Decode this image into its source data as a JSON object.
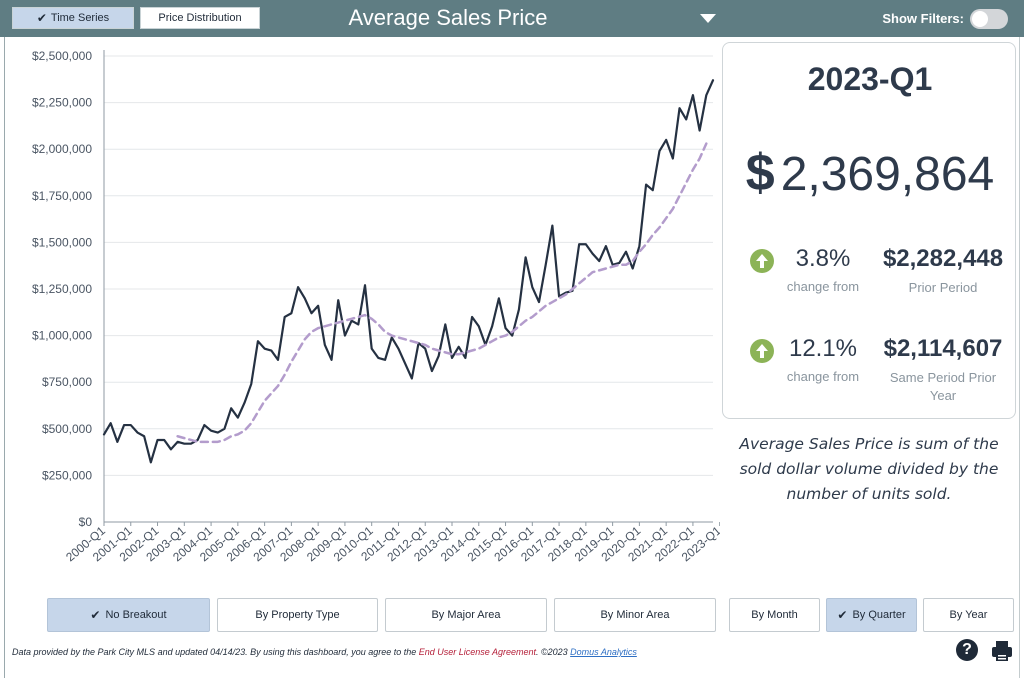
{
  "header": {
    "tabs": [
      {
        "label": "Time Series",
        "active": true
      },
      {
        "label": "Price Distribution",
        "active": false
      }
    ],
    "title": "Average Sales Price",
    "show_filters_label": "Show Filters:",
    "show_filters_on": false,
    "accent_color": "#5f7d83"
  },
  "summary": {
    "period": "2023-Q1",
    "currency_symbol": "$",
    "value": "2,369,864",
    "comparisons": [
      {
        "pct": "3.8%",
        "pct_label": "change from",
        "amount": "$2,282,448",
        "amount_label": "Prior Period",
        "direction_icon": "arrow-up-circle-icon"
      },
      {
        "pct": "12.1%",
        "pct_label": "change from",
        "amount": "$2,114,607",
        "amount_label": "Same Period Prior Year",
        "direction_icon": "arrow-up-circle-icon"
      }
    ],
    "positive_color": "#8cb357"
  },
  "description": "Average Sales Price is sum of the sold dollar volume divided by the number of units sold.",
  "breakout_buttons": [
    {
      "label": "No Breakout",
      "active": true
    },
    {
      "label": "By Property Type",
      "active": false
    },
    {
      "label": "By Major Area",
      "active": false
    },
    {
      "label": "By Minor Area",
      "active": false
    }
  ],
  "period_buttons": [
    {
      "label": "By Month",
      "active": false
    },
    {
      "label": "By Quarter",
      "active": true
    },
    {
      "label": "By Year",
      "active": false
    }
  ],
  "footer": {
    "text_before": "Data provided by the Park City MLS and updated 04/14/23.  By using this dashboard, you agree to the ",
    "eula": "End User License Agreement",
    "text_after": ".  ©2023 ",
    "brand": "Domus Analytics"
  },
  "chart_data": {
    "type": "line",
    "title": "",
    "xlabel": "",
    "ylabel": "",
    "ylim": [
      0,
      2500000
    ],
    "y_ticks": [
      0,
      250000,
      500000,
      750000,
      1000000,
      1250000,
      1500000,
      1750000,
      2000000,
      2250000,
      2500000
    ],
    "y_tick_labels": [
      "$0",
      "$250,000",
      "$500,000",
      "$750,000",
      "$1,000,000",
      "$1,250,000",
      "$1,500,000",
      "$1,750,000",
      "$2,000,000",
      "$2,250,000",
      "$2,500,000"
    ],
    "x_tick_labels": [
      "2000-Q1",
      "2001-Q1",
      "2002-Q1",
      "2003-Q1",
      "2004-Q1",
      "2005-Q1",
      "2006-Q1",
      "2007-Q1",
      "2008-Q1",
      "2009-Q1",
      "2010-Q1",
      "2011-Q1",
      "2012-Q1",
      "2013-Q1",
      "2014-Q1",
      "2015-Q1",
      "2016-Q1",
      "2017-Q1",
      "2018-Q1",
      "2019-Q1",
      "2020-Q1",
      "2021-Q1",
      "2022-Q1",
      "2023-Q1"
    ],
    "grid": true,
    "series": [
      {
        "style": "solid",
        "color": "#253142",
        "values": [
          470000,
          530000,
          430000,
          520000,
          520000,
          480000,
          460000,
          320000,
          440000,
          440000,
          390000,
          430000,
          420000,
          420000,
          440000,
          520000,
          490000,
          480000,
          500000,
          610000,
          560000,
          640000,
          740000,
          970000,
          930000,
          920000,
          870000,
          1100000,
          1120000,
          1260000,
          1200000,
          1120000,
          1160000,
          950000,
          870000,
          1190000,
          1000000,
          1080000,
          1060000,
          1270000,
          930000,
          880000,
          870000,
          990000,
          930000,
          850000,
          770000,
          960000,
          930000,
          810000,
          890000,
          1060000,
          880000,
          940000,
          880000,
          1100000,
          1050000,
          950000,
          1050000,
          1200000,
          1040000,
          1000000,
          1140000,
          1420000,
          1260000,
          1180000,
          1380000,
          1590000,
          1210000,
          1230000,
          1240000,
          1490000,
          1490000,
          1440000,
          1400000,
          1480000,
          1380000,
          1390000,
          1450000,
          1360000,
          1480000,
          1810000,
          1780000,
          1990000,
          2050000,
          1950000,
          2220000,
          2160000,
          2290000,
          2100000,
          2290000,
          2369864
        ]
      },
      {
        "style": "dashed",
        "color": "#b39ccc",
        "values": [
          null,
          null,
          null,
          null,
          null,
          null,
          null,
          null,
          null,
          null,
          null,
          460000,
          450000,
          440000,
          430000,
          430000,
          430000,
          430000,
          440000,
          460000,
          470000,
          490000,
          530000,
          590000,
          650000,
          690000,
          730000,
          790000,
          860000,
          920000,
          980000,
          1020000,
          1040000,
          1050000,
          1060000,
          1070000,
          1080000,
          1090000,
          1100000,
          1110000,
          1090000,
          1060000,
          1020000,
          1000000,
          990000,
          980000,
          970000,
          960000,
          950000,
          930000,
          920000,
          910000,
          900000,
          900000,
          910000,
          920000,
          930000,
          950000,
          970000,
          990000,
          1000000,
          1020000,
          1050000,
          1080000,
          1100000,
          1130000,
          1160000,
          1180000,
          1200000,
          1220000,
          1250000,
          1280000,
          1310000,
          1340000,
          1350000,
          1360000,
          1370000,
          1380000,
          1380000,
          1400000,
          1450000,
          1490000,
          1540000,
          1580000,
          1630000,
          1680000,
          1750000,
          1820000,
          1890000,
          1950000,
          2030000
        ]
      }
    ]
  }
}
